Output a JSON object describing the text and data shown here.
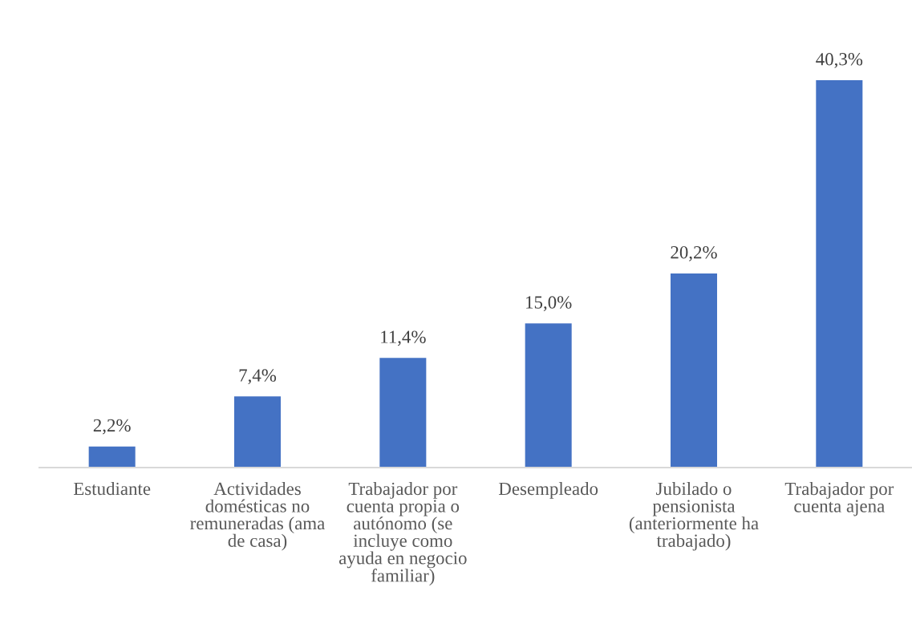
{
  "chart_data": {
    "type": "bar",
    "categories": [
      "Estudiante",
      "Actividades domésticas no remuneradas (ama de casa)",
      "Trabajador por cuenta propia o autónomo (se incluye como ayuda en negocio familiar)",
      "Desempleado",
      "Jubilado o pensionista (anteriormente ha trabajado)",
      "Trabajador por cuenta ajena"
    ],
    "values": [
      2.2,
      7.4,
      11.4,
      15.0,
      20.2,
      40.3
    ],
    "value_labels": [
      "2,2%",
      "7,4%",
      "11,4%",
      "15,0%",
      "20,2%",
      "40,3%"
    ],
    "color": "#4472c4"
  }
}
